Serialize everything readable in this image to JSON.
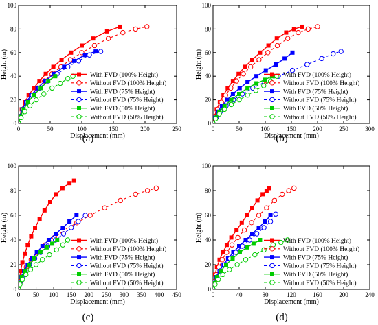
{
  "colors": {
    "red": "#ff0000",
    "blue": "#0000ff",
    "green": "#00cc00",
    "axis": "#000000"
  },
  "chart_data": [
    {
      "type": "line",
      "panel_label": "(a)",
      "xlabel": "Displacement (mm)",
      "ylabel": "Height (m)",
      "xlim": [
        0,
        250
      ],
      "ylim": [
        0,
        100
      ],
      "xticks": [
        "0",
        "50",
        "100",
        "150",
        "200",
        "250"
      ],
      "yticks": [
        "0",
        "20",
        "40",
        "60",
        "80",
        "100"
      ],
      "legend_position": "bottom-right",
      "series": [
        {
          "name": "With FVD (100% Height)",
          "color": "red",
          "style": "solid",
          "marker": "filled-square",
          "x": [
            0,
            2,
            5,
            10,
            16,
            24,
            33,
            43,
            55,
            68,
            83,
            100,
            118,
            140,
            160
          ],
          "y": [
            0,
            6,
            12,
            18,
            24,
            30,
            36,
            42,
            48,
            54,
            60,
            66,
            72,
            78,
            82
          ]
        },
        {
          "name": "Without FVD (100% Height)",
          "color": "red",
          "style": "dashed",
          "marker": "open-circle",
          "x": [
            0,
            3,
            7,
            13,
            21,
            30,
            41,
            53,
            67,
            82,
            100,
            120,
            142,
            165,
            185,
            203
          ],
          "y": [
            0,
            6,
            12,
            18,
            24,
            30,
            36,
            42,
            48,
            54,
            60,
            66,
            72,
            77,
            80,
            82
          ]
        },
        {
          "name": "With FVD (75% Height)",
          "color": "blue",
          "style": "solid",
          "marker": "filled-square",
          "x": [
            0,
            2,
            6,
            12,
            20,
            30,
            42,
            56,
            72,
            88,
            105,
            122
          ],
          "y": [
            0,
            6,
            12,
            18,
            24,
            30,
            36,
            42,
            48,
            53,
            58,
            61
          ]
        },
        {
          "name": "Without FVD (75% Height)",
          "color": "blue",
          "style": "dashed",
          "marker": "open-circle",
          "x": [
            0,
            3,
            7,
            14,
            22,
            33,
            46,
            61,
            78,
            95,
            112,
            130
          ],
          "y": [
            0,
            6,
            12,
            18,
            24,
            30,
            36,
            42,
            48,
            53,
            58,
            61
          ]
        },
        {
          "name": "With FVD (50% Height)",
          "color": "green",
          "style": "solid",
          "marker": "filled-square",
          "x": [
            0,
            3,
            8,
            15,
            24,
            35,
            47,
            58
          ],
          "y": [
            0,
            6,
            12,
            18,
            24,
            30,
            36,
            40
          ]
        },
        {
          "name": "Without FVD (50% Height)",
          "color": "green",
          "style": "dashed",
          "marker": "open-circle",
          "x": [
            0,
            4,
            10,
            18,
            28,
            40,
            53,
            66,
            78,
            86
          ],
          "y": [
            0,
            5,
            10,
            15,
            20,
            25,
            30,
            34,
            38,
            40
          ]
        }
      ]
    },
    {
      "type": "line",
      "panel_label": "(b)",
      "xlabel": "Displacement (mm)",
      "ylabel": "Height (m)",
      "xlim": [
        0,
        300
      ],
      "ylim": [
        0,
        100
      ],
      "xticks": [
        "0",
        "50",
        "100",
        "150",
        "200",
        "250",
        "300"
      ],
      "yticks": [
        "0",
        "20",
        "40",
        "60",
        "80",
        "100"
      ],
      "legend_position": "bottom-right",
      "series": [
        {
          "name": "With FVD (100% Height)",
          "color": "red",
          "style": "solid",
          "marker": "filled-square",
          "x": [
            0,
            3,
            7,
            13,
            20,
            28,
            38,
            49,
            61,
            75,
            90,
            106,
            122,
            140,
            155,
            170
          ],
          "y": [
            0,
            6,
            12,
            18,
            24,
            30,
            36,
            42,
            48,
            54,
            60,
            66,
            72,
            77,
            80,
            82
          ]
        },
        {
          "name": "Without FVD (100% Height)",
          "color": "red",
          "style": "dashed",
          "marker": "open-circle",
          "x": [
            0,
            4,
            9,
            16,
            24,
            34,
            45,
            58,
            72,
            88,
            105,
            123,
            143,
            163,
            182,
            200
          ],
          "y": [
            0,
            6,
            12,
            18,
            24,
            30,
            36,
            42,
            48,
            54,
            60,
            66,
            72,
            77,
            80,
            82
          ]
        },
        {
          "name": "With FVD (75% Height)",
          "color": "blue",
          "style": "solid",
          "marker": "filled-square",
          "x": [
            0,
            4,
            9,
            17,
            27,
            38,
            51,
            66,
            83,
            101,
            120,
            137,
            152
          ],
          "y": [
            0,
            5,
            10,
            15,
            20,
            25,
            30,
            35,
            40,
            45,
            50,
            55,
            60
          ]
        },
        {
          "name": "Without FVD (75% Height)",
          "color": "blue",
          "style": "dashed",
          "marker": "open-circle",
          "x": [
            0,
            6,
            14,
            25,
            39,
            56,
            76,
            99,
            125,
            152,
            180,
            208,
            230,
            245
          ],
          "y": [
            0,
            5,
            10,
            15,
            20,
            25,
            30,
            35,
            40,
            45,
            50,
            55,
            59,
            61
          ]
        },
        {
          "name": "With FVD (50% Height)",
          "color": "green",
          "style": "solid",
          "marker": "filled-square",
          "x": [
            0,
            5,
            12,
            22,
            35,
            50,
            66,
            83,
            99,
            113
          ],
          "y": [
            0,
            5,
            10,
            15,
            20,
            25,
            30,
            34,
            37,
            40
          ]
        },
        {
          "name": "Without FVD (50% Height)",
          "color": "green",
          "style": "dashed",
          "marker": "open-circle",
          "x": [
            0,
            5,
            12,
            22,
            35,
            50,
            66,
            82,
            97,
            110,
            122
          ],
          "y": [
            0,
            4,
            8,
            12,
            16,
            20,
            24,
            28,
            32,
            36,
            40
          ]
        }
      ]
    },
    {
      "type": "line",
      "panel_label": "(c)",
      "xlabel": "Displacement (mm)",
      "ylabel": "Height (m)",
      "xlim": [
        0,
        450
      ],
      "ylim": [
        0,
        100
      ],
      "xticks": [
        "0",
        "50",
        "100",
        "150",
        "200",
        "250",
        "300",
        "350",
        "400",
        "450"
      ],
      "yticks": [
        "0",
        "20",
        "40",
        "60",
        "80",
        "100"
      ],
      "legend_position": "bottom-right",
      "series": [
        {
          "name": "With FVD (100% Height)",
          "color": "red",
          "style": "solid",
          "marker": "filled-square",
          "x": [
            0,
            2,
            6,
            11,
            18,
            26,
            36,
            47,
            60,
            74,
            90,
            107,
            125,
            145,
            158
          ],
          "y": [
            0,
            8,
            15,
            22,
            29,
            36,
            43,
            50,
            57,
            64,
            71,
            77,
            82,
            86,
            88
          ]
        },
        {
          "name": "Without FVD (100% Height)",
          "color": "red",
          "style": "dashed",
          "marker": "open-circle",
          "x": [
            0,
            5,
            12,
            22,
            36,
            54,
            76,
            102,
            132,
            166,
            204,
            245,
            290,
            333,
            367,
            392
          ],
          "y": [
            0,
            6,
            12,
            18,
            24,
            30,
            36,
            42,
            48,
            54,
            60,
            66,
            72,
            77,
            80,
            82
          ]
        },
        {
          "name": "With FVD (75% Height)",
          "color": "blue",
          "style": "solid",
          "marker": "filled-square",
          "x": [
            0,
            3,
            8,
            16,
            26,
            38,
            52,
            68,
            86,
            106,
            126,
            145,
            165
          ],
          "y": [
            0,
            5,
            10,
            15,
            20,
            25,
            30,
            35,
            40,
            45,
            50,
            55,
            60
          ]
        },
        {
          "name": "Without FVD (75% Height)",
          "color": "blue",
          "style": "dashed",
          "marker": "open-circle",
          "x": [
            0,
            4,
            10,
            19,
            31,
            46,
            63,
            83,
            105,
            128,
            150,
            170,
            190
          ],
          "y": [
            0,
            5,
            10,
            15,
            20,
            25,
            30,
            35,
            40,
            45,
            50,
            55,
            60
          ]
        },
        {
          "name": "With FVD (50% Height)",
          "color": "green",
          "style": "solid",
          "marker": "filled-square",
          "x": [
            0,
            3,
            9,
            18,
            30,
            45,
            62,
            80,
            96,
            110
          ],
          "y": [
            0,
            5,
            10,
            15,
            20,
            25,
            30,
            34,
            37,
            40
          ]
        },
        {
          "name": "Without FVD (50% Height)",
          "color": "green",
          "style": "dashed",
          "marker": "open-circle",
          "x": [
            0,
            4,
            11,
            21,
            34,
            50,
            68,
            88,
            108,
            126,
            140
          ],
          "y": [
            0,
            4,
            8,
            12,
            16,
            20,
            24,
            28,
            32,
            36,
            40
          ]
        }
      ]
    },
    {
      "type": "line",
      "panel_label": "(d)",
      "xlabel": "Displacement (mm)",
      "ylabel": "Height (m)",
      "xlim": [
        0,
        240
      ],
      "ylim": [
        0,
        100
      ],
      "xticks": [
        "0",
        "40",
        "80",
        "120",
        "160",
        "200",
        "240"
      ],
      "yticks": [
        "0",
        "20",
        "40",
        "60",
        "80",
        "100"
      ],
      "legend_position": "bottom-right",
      "series": [
        {
          "name": "With FVD (100% Height)",
          "color": "red",
          "style": "solid",
          "marker": "filled-square",
          "x": [
            0,
            1,
            3,
            6,
            10,
            15,
            21,
            28,
            36,
            44,
            52,
            60,
            68,
            76,
            82,
            86
          ],
          "y": [
            0,
            6,
            12,
            18,
            24,
            30,
            36,
            42,
            48,
            54,
            60,
            66,
            72,
            77,
            80,
            82
          ]
        },
        {
          "name": "Without FVD (100% Height)",
          "color": "red",
          "style": "dashed",
          "marker": "open-circle",
          "x": [
            0,
            2,
            5,
            9,
            14,
            21,
            29,
            38,
            48,
            59,
            70,
            82,
            94,
            106,
            116,
            124
          ],
          "y": [
            0,
            6,
            12,
            18,
            24,
            30,
            36,
            42,
            48,
            54,
            60,
            66,
            72,
            77,
            80,
            82
          ]
        },
        {
          "name": "With FVD (75% Height)",
          "color": "blue",
          "style": "solid",
          "marker": "filled-square",
          "x": [
            0,
            2,
            5,
            10,
            16,
            23,
            31,
            40,
            50,
            60,
            70,
            80,
            88
          ],
          "y": [
            0,
            5,
            10,
            15,
            20,
            25,
            30,
            35,
            40,
            45,
            50,
            55,
            60
          ]
        },
        {
          "name": "Without FVD (75% Height)",
          "color": "blue",
          "style": "dashed",
          "marker": "open-circle",
          "x": [
            0,
            2,
            6,
            11,
            18,
            26,
            35,
            45,
            56,
            67,
            78,
            88,
            96
          ],
          "y": [
            0,
            5,
            10,
            15,
            20,
            25,
            30,
            35,
            40,
            45,
            50,
            55,
            61
          ]
        },
        {
          "name": "With FVD (50% Height)",
          "color": "green",
          "style": "solid",
          "marker": "filled-square",
          "x": [
            0,
            2,
            6,
            12,
            20,
            30,
            41,
            52,
            62,
            72
          ],
          "y": [
            0,
            5,
            10,
            15,
            20,
            25,
            30,
            34,
            37,
            40
          ]
        },
        {
          "name": "Without FVD (50% Height)",
          "color": "green",
          "style": "dashed",
          "marker": "open-circle",
          "x": [
            0,
            3,
            8,
            15,
            25,
            37,
            50,
            64,
            78,
            92,
            104,
            114
          ],
          "y": [
            0,
            4,
            8,
            12,
            16,
            20,
            24,
            28,
            32,
            36,
            38,
            40
          ]
        }
      ]
    }
  ]
}
